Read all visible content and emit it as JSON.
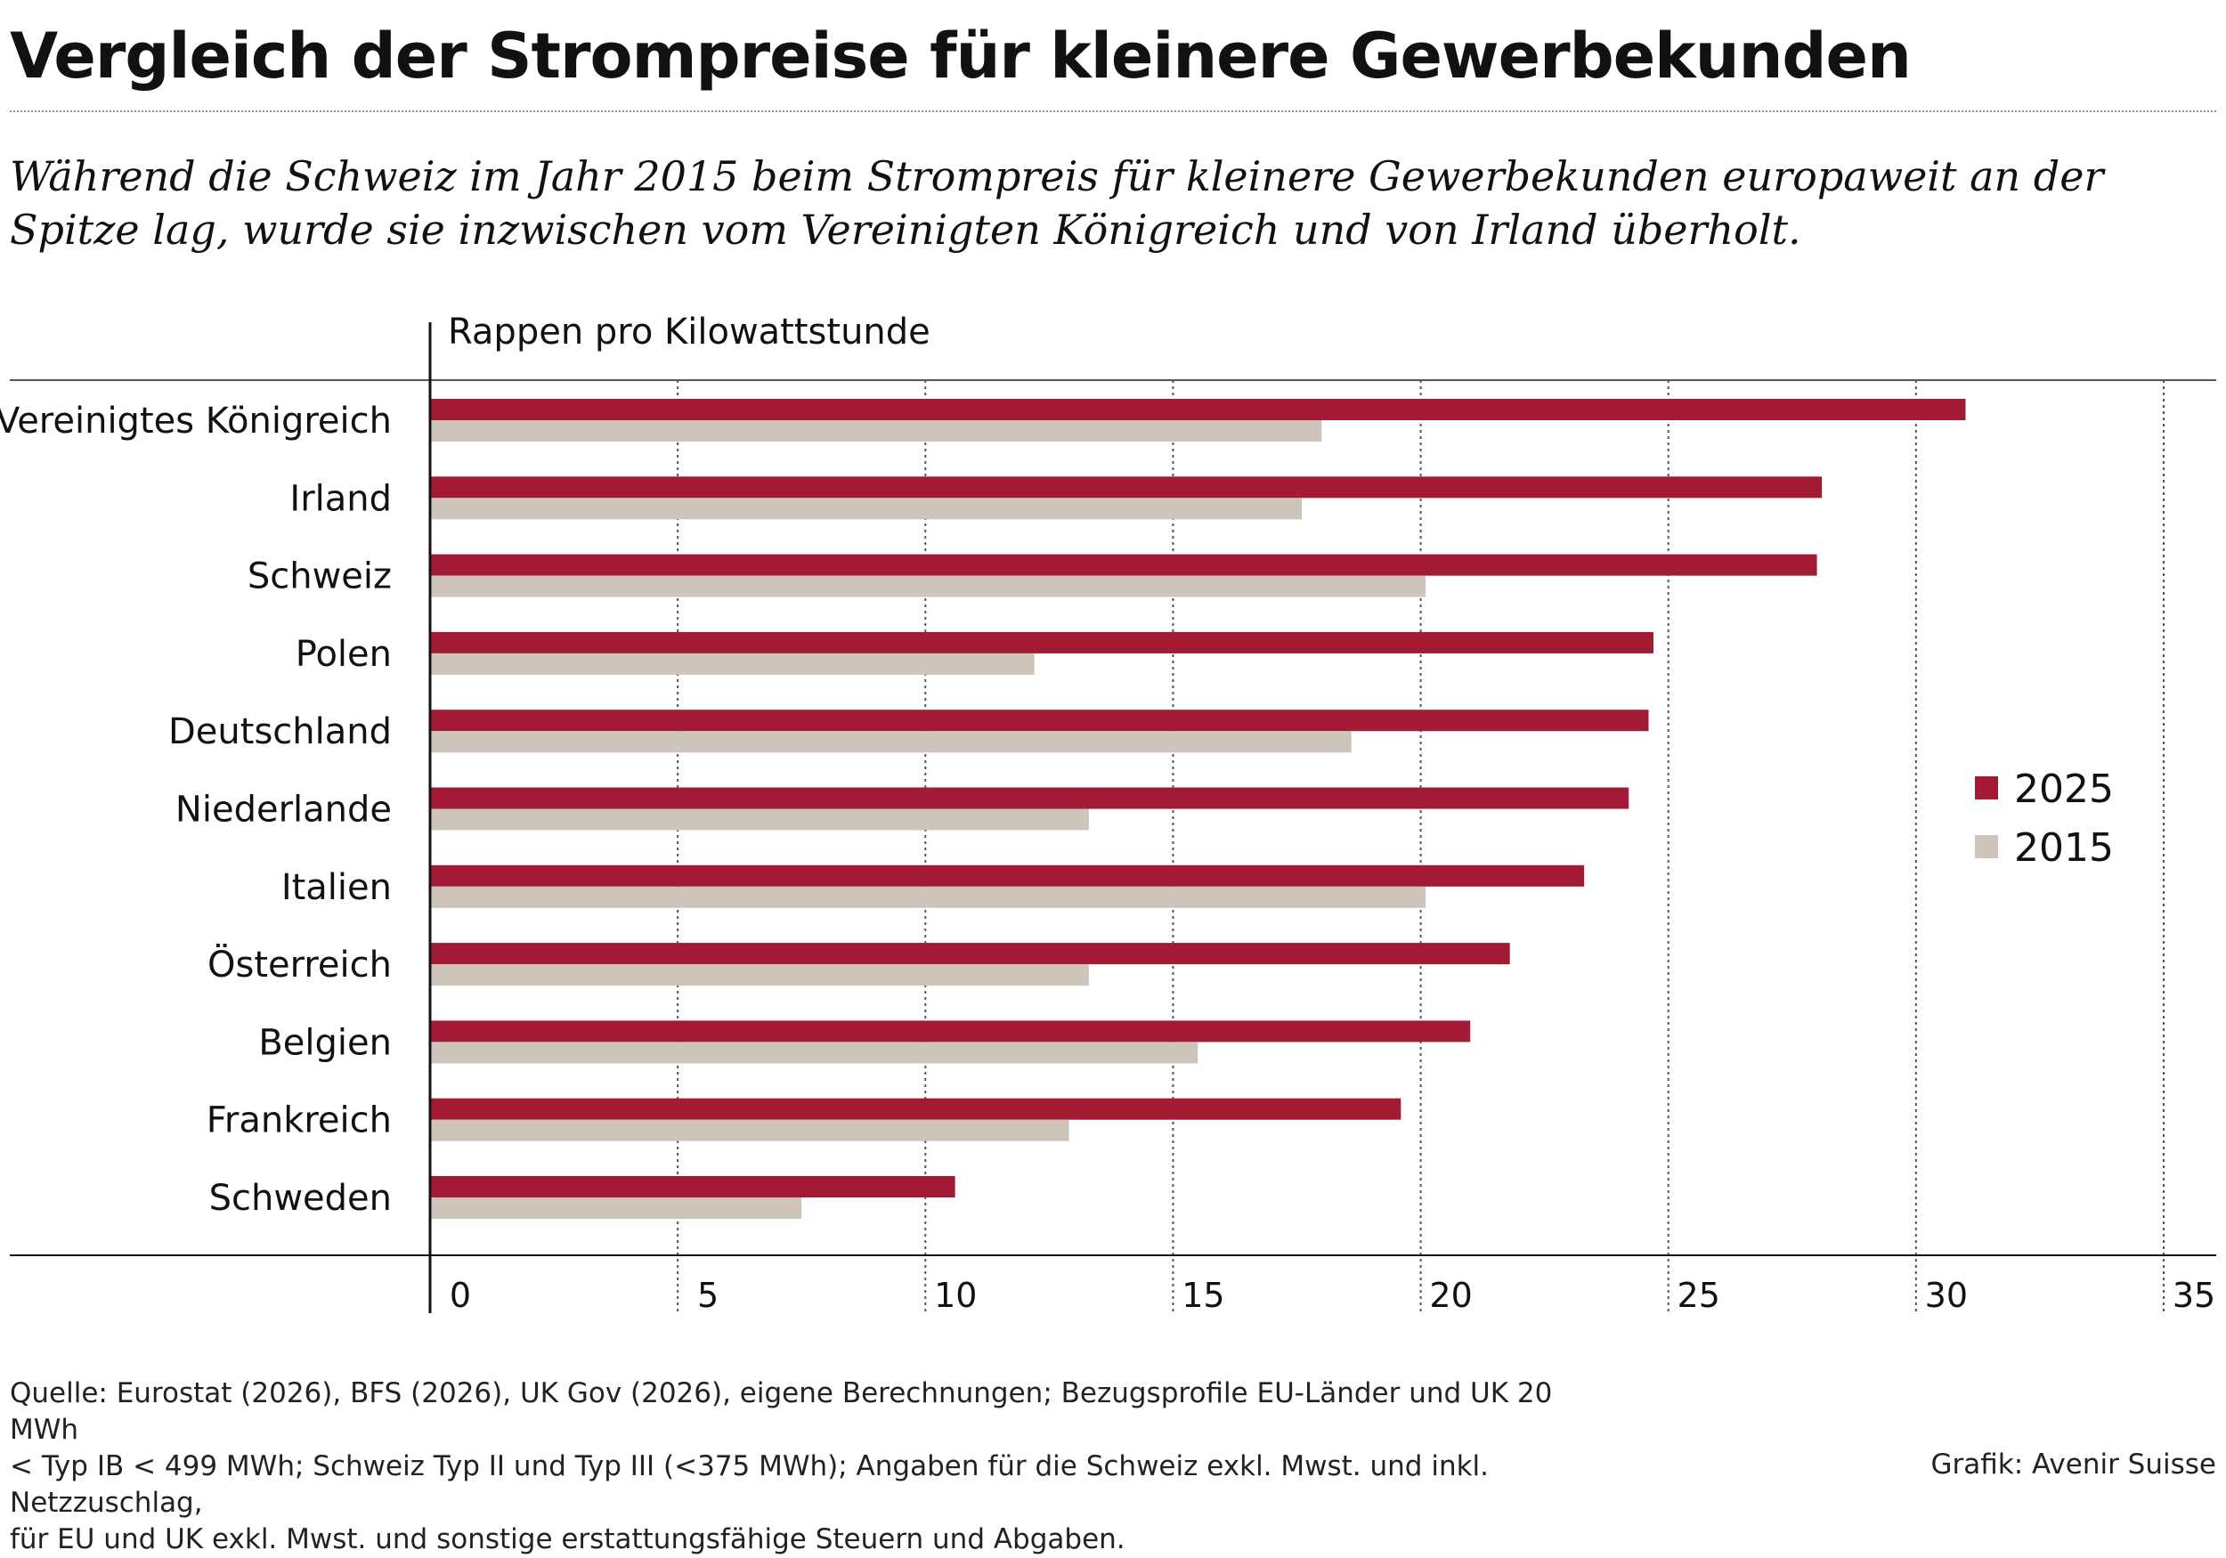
{
  "header": {
    "title": "Vergleich der Strompreise für kleinere Gewerbekunden",
    "subtitle": "Während die Schweiz im Jahr 2015 beim Strompreis für kleinere Gewerbekunden europaweit an der Spitze lag, wurde sie inzwischen vom Vereinigten Königreich und von Irland überholt."
  },
  "colors": {
    "series_2025": "#a31a35",
    "series_2015": "#cdc4ba",
    "axis": "#111111",
    "grid": "#555555"
  },
  "chart_data": {
    "type": "bar",
    "orientation": "horizontal",
    "unit_label": "Rappen pro Kilowattstunde",
    "categories": [
      "Vereinigtes Königreich",
      "Irland",
      "Schweiz",
      "Polen",
      "Deutschland",
      "Niederlande",
      "Italien",
      "Österreich",
      "Belgien",
      "Frankreich",
      "Schweden"
    ],
    "series": [
      {
        "name": "2025",
        "values": [
          31.0,
          28.1,
          28.0,
          24.7,
          24.6,
          24.2,
          23.3,
          21.8,
          21.0,
          19.6,
          10.6
        ]
      },
      {
        "name": "2015",
        "values": [
          18.0,
          17.6,
          20.1,
          12.2,
          18.6,
          13.3,
          20.1,
          13.3,
          15.5,
          12.9,
          7.5
        ]
      }
    ],
    "xlim": [
      0,
      35
    ],
    "xticks": [
      0,
      5,
      10,
      15,
      20,
      25,
      30,
      35
    ],
    "grid": true,
    "legend_position": "right"
  },
  "footer": {
    "source_lines": [
      "Quelle: Eurostat (2026), BFS (2026), UK Gov (2026), eigene Berechnungen; Bezugsprofile EU-Länder und UK 20 MWh",
      "< Typ IB < 499 MWh; Schweiz Typ II und Typ III (<375 MWh); Angaben für die Schweiz exkl. Mwst. und inkl. Netzzuschlag,",
      "für EU und UK exkl. Mwst. und sonstige erstattungsfähige Steuern und Abgaben."
    ],
    "credit": "Grafik: Avenir Suisse"
  }
}
